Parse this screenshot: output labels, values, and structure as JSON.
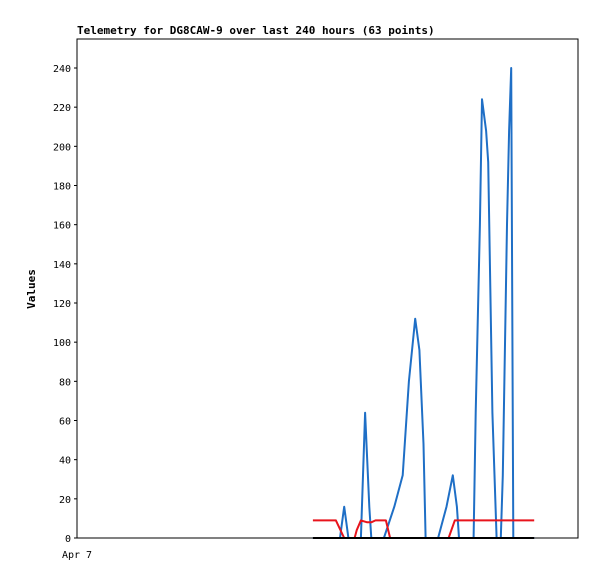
{
  "chart_data": {
    "type": "line",
    "title": "Telemetry for DG8CAW-9 over last 240 hours (63 points)",
    "xlabel": "",
    "ylabel": "Values",
    "x_tick_labels": [
      "Apr 7"
    ],
    "x_range_hours": [
      0,
      240
    ],
    "y_ticks": [
      0,
      20,
      40,
      60,
      80,
      100,
      120,
      140,
      160,
      180,
      200,
      220,
      240
    ],
    "ylim": [
      0,
      255
    ],
    "grid": false,
    "legend": "none",
    "series": [
      {
        "color": "#1F6FC6",
        "points": [
          [
            113,
            0
          ],
          [
            122,
            0
          ],
          [
            126,
            0
          ],
          [
            127,
            8
          ],
          [
            128,
            16
          ],
          [
            129,
            8
          ],
          [
            130,
            0
          ],
          [
            136,
            0
          ],
          [
            137,
            32
          ],
          [
            138,
            64
          ],
          [
            139,
            40
          ],
          [
            140,
            16
          ],
          [
            141,
            0
          ],
          [
            147,
            0
          ],
          [
            152,
            16
          ],
          [
            156,
            32
          ],
          [
            159,
            80
          ],
          [
            162,
            112
          ],
          [
            164,
            96
          ],
          [
            166,
            48
          ],
          [
            167,
            0
          ],
          [
            173,
            0
          ],
          [
            177,
            16
          ],
          [
            180,
            32
          ],
          [
            182,
            16
          ],
          [
            183,
            0
          ],
          [
            190,
            0
          ],
          [
            191,
            64
          ],
          [
            193,
            160
          ],
          [
            194,
            224
          ],
          [
            196,
            208
          ],
          [
            197,
            192
          ],
          [
            198,
            128
          ],
          [
            199,
            64
          ],
          [
            200,
            32
          ],
          [
            201,
            0
          ],
          [
            203,
            0
          ],
          [
            204,
            32
          ],
          [
            205,
            96
          ],
          [
            206,
            160
          ],
          [
            207,
            208
          ],
          [
            208,
            240
          ],
          [
            209,
            0
          ],
          [
            219,
            0
          ]
        ]
      },
      {
        "color": "#E8141C",
        "points": [
          [
            113,
            9
          ],
          [
            124,
            9
          ],
          [
            128,
            0
          ],
          [
            133,
            0
          ],
          [
            134,
            4
          ],
          [
            136,
            9
          ],
          [
            139,
            8
          ],
          [
            141,
            8
          ],
          [
            143,
            9
          ],
          [
            145,
            9
          ],
          [
            148,
            9
          ],
          [
            150,
            0
          ],
          [
            167,
            0
          ],
          [
            178,
            0
          ],
          [
            181,
            9
          ],
          [
            219,
            9
          ]
        ]
      },
      {
        "color": "#000000",
        "points": [
          [
            113,
            0
          ],
          [
            219,
            0
          ]
        ]
      }
    ]
  }
}
